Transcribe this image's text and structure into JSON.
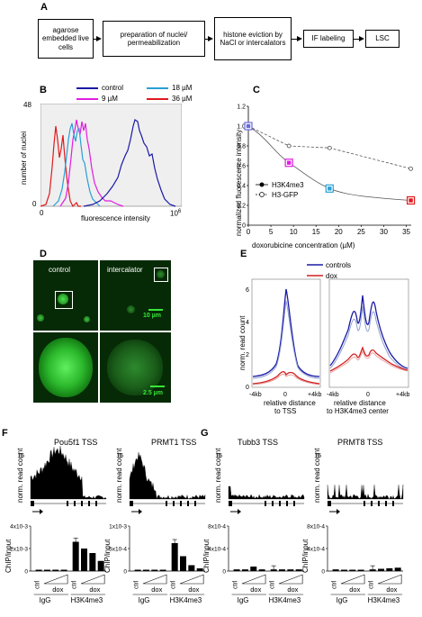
{
  "panels": {
    "A": "A",
    "B": "B",
    "C": "C",
    "D": "D",
    "E": "E",
    "F": "F",
    "G": "G"
  },
  "flowchart": {
    "steps": [
      "agarose embedded live cells",
      "preparation of nuclei/ permeabilization",
      "histone eviction by NaCl or intercalators",
      "IF labeling",
      "LSC"
    ]
  },
  "panelB": {
    "legend": [
      {
        "label": "control",
        "color": "#1a1aa6"
      },
      {
        "label": "18 µM",
        "color": "#2a9fd6"
      },
      {
        "label": "9 µM",
        "color": "#e11ee1"
      },
      {
        "label": "36 µM",
        "color": "#e0191d"
      }
    ],
    "ylabel": "number of nuclei",
    "xlabel": "fluorescence intensity",
    "ymax_label": "48",
    "ymin_label": "0",
    "x0_label": "0",
    "x1_label": "10",
    "x1_sup": "6"
  },
  "chart_data": [
    {
      "type": "line",
      "panel": "C",
      "xlabel": "doxorubicine concentration (µM)",
      "ylabel": "normalized fluorescence intensity",
      "xlim": [
        0,
        35
      ],
      "ylim": [
        0,
        1.2
      ],
      "xticks": [
        "0",
        "5",
        "10",
        "15",
        "20",
        "25",
        "30",
        "35"
      ],
      "yticks": [
        "0",
        "0.2",
        "0.4",
        "0.6",
        "0.8",
        "1.0",
        "1.2"
      ],
      "series": [
        {
          "name": "H3K4me3",
          "x": [
            0,
            9,
            18,
            36
          ],
          "y": [
            1.0,
            0.63,
            0.37,
            0.25
          ]
        },
        {
          "name": "H3-GFP",
          "x": [
            0,
            9,
            18,
            36
          ],
          "y": [
            1.0,
            0.8,
            0.78,
            0.57
          ]
        }
      ]
    },
    {
      "type": "line",
      "panel": "E",
      "ylabel": "norm. read count",
      "ylim": [
        0,
        6
      ],
      "yticks": [
        "0",
        "2",
        "4",
        "6"
      ],
      "legend": [
        "controls",
        "dox"
      ],
      "subplots": [
        {
          "xlabel": "relative distance to TSS",
          "xticks": [
            "-4kb",
            "0",
            "+4kb"
          ]
        },
        {
          "xlabel": "relative distance to H3K4me3 center",
          "xticks": [
            "-4kb",
            "0",
            "+4kb"
          ]
        }
      ]
    },
    {
      "type": "bar",
      "panel": "F-Pou5f1",
      "title": "Pou5f1 TSS",
      "ylabel": "ChIP/input",
      "yticks": [
        "0",
        "2x10-3",
        "4x10-3"
      ],
      "ylim": [
        0,
        0.004
      ],
      "categories": [
        "IgG ctrl",
        "IgG dox1",
        "IgG dox2",
        "IgG dox3",
        "H3K4me3 ctrl",
        "H3K4me3 dox1",
        "H3K4me3 dox2",
        "H3K4me3 dox3"
      ],
      "values": [
        0,
        0,
        0,
        0,
        0.0026,
        0.002,
        0.0016,
        0.0009
      ]
    },
    {
      "type": "bar",
      "panel": "F-PRMT1",
      "title": "PRMT1 TSS",
      "ylabel": "ChIP/input",
      "yticks": [
        "0",
        "5x10-4",
        "1x10-3"
      ],
      "ylim": [
        0,
        0.001
      ],
      "categories": [
        "IgG ctrl",
        "IgG dox1",
        "IgG dox2",
        "IgG dox3",
        "H3K4me3 ctrl",
        "H3K4me3 dox1",
        "H3K4me3 dox2",
        "H3K4me3 dox3"
      ],
      "values": [
        0,
        0,
        0,
        0,
        0.00062,
        0.00033,
        0.00013,
        6e-05
      ]
    },
    {
      "type": "bar",
      "panel": "G-Tubb3",
      "title": "Tubb3 TSS",
      "ylabel": "ChIP/input",
      "yticks": [
        "0",
        "4x10-4",
        "8x10-4"
      ],
      "ylim": [
        0,
        0.0008
      ],
      "categories": [
        "IgG ctrl",
        "IgG dox1",
        "IgG dox2",
        "IgG dox3",
        "H3K4me3 ctrl",
        "H3K4me3 dox1",
        "H3K4me3 dox2",
        "H3K4me3 dox3"
      ],
      "values": [
        3e-05,
        3e-05,
        8e-05,
        3e-05,
        3e-05,
        3e-05,
        3e-05,
        3e-05
      ]
    },
    {
      "type": "bar",
      "panel": "G-PRMT8",
      "title": "PRMT8 TSS",
      "ylabel": "ChIP/input",
      "yticks": [
        "0",
        "4x10-4",
        "8x10-4"
      ],
      "ylim": [
        0,
        0.0008
      ],
      "categories": [
        "IgG ctrl",
        "IgG dox1",
        "IgG dox2",
        "IgG dox3",
        "H3K4me3 ctrl",
        "H3K4me3 dox1",
        "H3K4me3 dox2",
        "H3K4me3 dox3"
      ],
      "values": [
        3e-05,
        2e-05,
        2e-05,
        2e-05,
        3e-05,
        4e-05,
        5e-05,
        6e-05
      ]
    }
  ],
  "panelD": {
    "label_control": "control",
    "label_intercalator": "intercalator",
    "scale_top": "10 µm",
    "scale_bottom": "2.5 µm"
  },
  "tracks": {
    "ylabel": "norm. read count",
    "scale_F1": "15",
    "scale_F2": "15",
    "scale_G1": "15",
    "scale_G2": "15"
  },
  "group_labels": {
    "ctrl": "ctrl",
    "dox": "dox",
    "igg": "IgG",
    "h3k4me3": "H3K4me3"
  }
}
